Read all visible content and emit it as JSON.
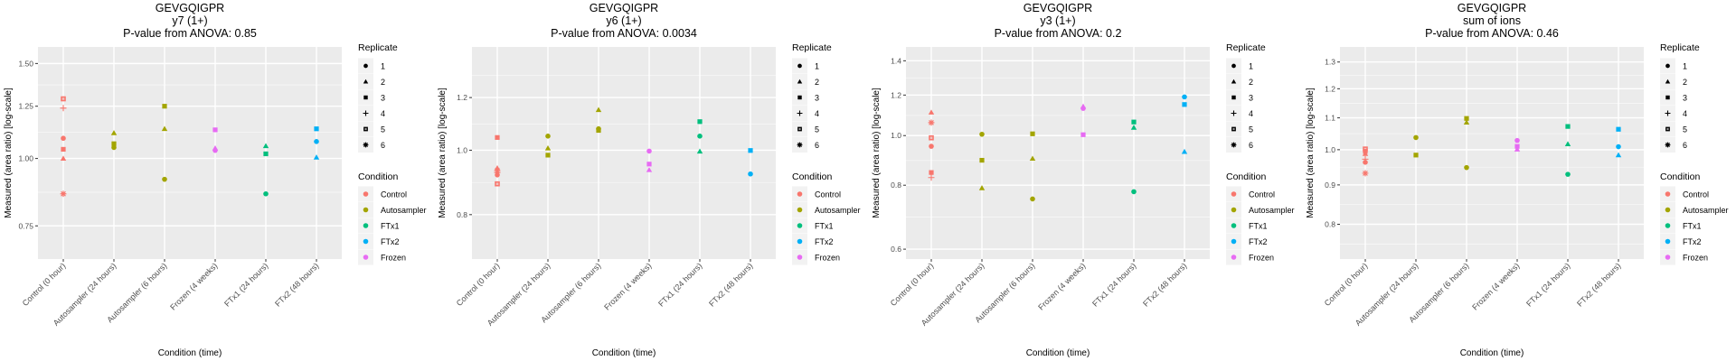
{
  "legend": {
    "replicate_title": "Replicate",
    "replicates": [
      {
        "label": "1",
        "shape": "circle"
      },
      {
        "label": "2",
        "shape": "triangle"
      },
      {
        "label": "3",
        "shape": "square"
      },
      {
        "label": "4",
        "shape": "plus"
      },
      {
        "label": "5",
        "shape": "square-x"
      },
      {
        "label": "6",
        "shape": "asterisk"
      }
    ],
    "condition_title": "Condition",
    "conditions": [
      {
        "label": "Control",
        "color": "#F8766D"
      },
      {
        "label": "Autosampler",
        "color": "#A3A500"
      },
      {
        "label": "FTx1",
        "color": "#00BF7D"
      },
      {
        "label": "FTx2",
        "color": "#00B0F6"
      },
      {
        "label": "Frozen",
        "color": "#E76BF3"
      }
    ]
  },
  "chart_data": [
    {
      "type": "scatter",
      "title": "GEVGQIGPR",
      "subtitle": "y7 (1+)",
      "annotation": "P-value from ANOVA: 0.85",
      "xlabel": "Condition (time)",
      "ylabel": "Measured (area ratio) [log-scale]",
      "yscale": "log",
      "ylim": [
        0.651,
        1.61
      ],
      "yticks": [
        0.75,
        1.0,
        1.25,
        1.5
      ],
      "ytick_labels": [
        "0.75",
        "1.00",
        "1.25",
        "1.50"
      ],
      "yminor": [
        0.866,
        1.118,
        1.369
      ],
      "grid": true,
      "legend": "right",
      "categories": [
        "Control (0 hour)",
        "Autosampler (24 hours)",
        "Autosampler (6 hours)",
        "Frozen (4 weeks)",
        "FTx1 (24 hours)",
        "FTx2 (48 hours)"
      ],
      "points": [
        {
          "x": 0,
          "y": 1.29,
          "rep": 5,
          "cond": "Control"
        },
        {
          "x": 0,
          "y": 1.24,
          "rep": 4,
          "cond": "Control"
        },
        {
          "x": 0,
          "y": 1.09,
          "rep": 1,
          "cond": "Control"
        },
        {
          "x": 0,
          "y": 1.04,
          "rep": 3,
          "cond": "Control"
        },
        {
          "x": 0,
          "y": 1.0,
          "rep": 2,
          "cond": "Control"
        },
        {
          "x": 0,
          "y": 0.86,
          "rep": 6,
          "cond": "Control"
        },
        {
          "x": 1,
          "y": 1.115,
          "rep": 2,
          "cond": "Autosampler"
        },
        {
          "x": 1,
          "y": 1.065,
          "rep": 3,
          "cond": "Autosampler"
        },
        {
          "x": 1,
          "y": 1.048,
          "rep": 1,
          "cond": "Autosampler"
        },
        {
          "x": 2,
          "y": 1.25,
          "rep": 3,
          "cond": "Autosampler"
        },
        {
          "x": 2,
          "y": 1.135,
          "rep": 2,
          "cond": "Autosampler"
        },
        {
          "x": 2,
          "y": 0.915,
          "rep": 1,
          "cond": "Autosampler"
        },
        {
          "x": 3,
          "y": 1.13,
          "rep": 3,
          "cond": "Frozen"
        },
        {
          "x": 3,
          "y": 1.045,
          "rep": 2,
          "cond": "Frozen"
        },
        {
          "x": 3,
          "y": 1.035,
          "rep": 1,
          "cond": "Frozen"
        },
        {
          "x": 4,
          "y": 1.055,
          "rep": 2,
          "cond": "FTx1"
        },
        {
          "x": 4,
          "y": 1.02,
          "rep": 3,
          "cond": "FTx1"
        },
        {
          "x": 4,
          "y": 0.86,
          "rep": 1,
          "cond": "FTx1"
        },
        {
          "x": 5,
          "y": 1.135,
          "rep": 3,
          "cond": "FTx2"
        },
        {
          "x": 5,
          "y": 1.075,
          "rep": 1,
          "cond": "FTx2"
        },
        {
          "x": 5,
          "y": 1.005,
          "rep": 2,
          "cond": "FTx2"
        }
      ]
    },
    {
      "type": "scatter",
      "title": "GEVGQIGPR",
      "subtitle": "y6 (1+)",
      "annotation": "P-value from ANOVA: 0.0034",
      "xlabel": "Condition (time)",
      "ylabel": "Measured (area ratio) [log-scale]",
      "yscale": "log",
      "ylim": [
        0.686,
        1.43
      ],
      "yticks": [
        0.8,
        1.0,
        1.2
      ],
      "ytick_labels": [
        "0.8",
        "1.0",
        "1.2"
      ],
      "yminor": [
        0.894,
        1.095,
        1.296
      ],
      "grid": true,
      "legend": "right",
      "categories": [
        "Control (0 hour)",
        "Autosampler (24 hours)",
        "Autosampler (6 hours)",
        "Frozen (4 weeks)",
        "FTx1 (24 hours)",
        "FTx2 (48 hours)"
      ],
      "points": [
        {
          "x": 0,
          "y": 1.045,
          "rep": 3,
          "cond": "Control"
        },
        {
          "x": 0,
          "y": 0.94,
          "rep": 2,
          "cond": "Control"
        },
        {
          "x": 0,
          "y": 0.932,
          "rep": 6,
          "cond": "Control"
        },
        {
          "x": 0,
          "y": 0.926,
          "rep": 4,
          "cond": "Control"
        },
        {
          "x": 0,
          "y": 0.918,
          "rep": 1,
          "cond": "Control"
        },
        {
          "x": 0,
          "y": 0.89,
          "rep": 5,
          "cond": "Control"
        },
        {
          "x": 1,
          "y": 1.05,
          "rep": 1,
          "cond": "Autosampler"
        },
        {
          "x": 1,
          "y": 1.007,
          "rep": 2,
          "cond": "Autosampler"
        },
        {
          "x": 1,
          "y": 0.983,
          "rep": 3,
          "cond": "Autosampler"
        },
        {
          "x": 2,
          "y": 1.15,
          "rep": 2,
          "cond": "Autosampler"
        },
        {
          "x": 2,
          "y": 1.077,
          "rep": 1,
          "cond": "Autosampler"
        },
        {
          "x": 2,
          "y": 1.071,
          "rep": 3,
          "cond": "Autosampler"
        },
        {
          "x": 3,
          "y": 0.997,
          "rep": 1,
          "cond": "Frozen"
        },
        {
          "x": 3,
          "y": 0.953,
          "rep": 3,
          "cond": "Frozen"
        },
        {
          "x": 3,
          "y": 0.934,
          "rep": 2,
          "cond": "Frozen"
        },
        {
          "x": 4,
          "y": 1.104,
          "rep": 3,
          "cond": "FTx1"
        },
        {
          "x": 4,
          "y": 1.05,
          "rep": 1,
          "cond": "FTx1"
        },
        {
          "x": 4,
          "y": 0.996,
          "rep": 2,
          "cond": "FTx1"
        },
        {
          "x": 5,
          "y": 0.999,
          "rep": 3,
          "cond": "FTx2"
        },
        {
          "x": 5,
          "y": 0.921,
          "rep": 1,
          "cond": "FTx2"
        }
      ]
    },
    {
      "type": "scatter",
      "title": "GEVGQIGPR",
      "subtitle": "y3 (1+)",
      "annotation": "P-value from ANOVA: 0.2",
      "xlabel": "Condition (time)",
      "ylabel": "Measured (area ratio) [log-scale]",
      "yscale": "log",
      "ylim": [
        0.574,
        1.49
      ],
      "yticks": [
        0.6,
        0.8,
        1.0,
        1.2,
        1.4
      ],
      "ytick_labels": [
        "0.6",
        "0.8",
        "1.0",
        "1.2",
        "1.4"
      ],
      "yminor": [
        0.693,
        0.894,
        1.095,
        1.296
      ],
      "grid": true,
      "legend": "right",
      "categories": [
        "Control (0 hour)",
        "Autosampler (24 hours)",
        "Autosampler (6 hours)",
        "Frozen (4 weeks)",
        "FTx1 (24 hours)",
        "FTx2 (48 hours)"
      ],
      "points": [
        {
          "x": 0,
          "y": 1.11,
          "rep": 2,
          "cond": "Control"
        },
        {
          "x": 0,
          "y": 1.06,
          "rep": 6,
          "cond": "Control"
        },
        {
          "x": 0,
          "y": 0.99,
          "rep": 5,
          "cond": "Control"
        },
        {
          "x": 0,
          "y": 0.953,
          "rep": 1,
          "cond": "Control"
        },
        {
          "x": 0,
          "y": 0.847,
          "rep": 3,
          "cond": "Control"
        },
        {
          "x": 0,
          "y": 0.828,
          "rep": 4,
          "cond": "Control"
        },
        {
          "x": 1,
          "y": 1.006,
          "rep": 1,
          "cond": "Autosampler"
        },
        {
          "x": 1,
          "y": 0.895,
          "rep": 3,
          "cond": "Autosampler"
        },
        {
          "x": 1,
          "y": 0.79,
          "rep": 2,
          "cond": "Autosampler"
        },
        {
          "x": 2,
          "y": 1.008,
          "rep": 3,
          "cond": "Autosampler"
        },
        {
          "x": 2,
          "y": 0.902,
          "rep": 2,
          "cond": "Autosampler"
        },
        {
          "x": 2,
          "y": 0.752,
          "rep": 1,
          "cond": "Autosampler"
        },
        {
          "x": 3,
          "y": 1.14,
          "rep": 2,
          "cond": "Frozen"
        },
        {
          "x": 3,
          "y": 1.13,
          "rep": 1,
          "cond": "Frozen"
        },
        {
          "x": 3,
          "y": 1.004,
          "rep": 3,
          "cond": "Frozen"
        },
        {
          "x": 4,
          "y": 1.063,
          "rep": 3,
          "cond": "FTx1"
        },
        {
          "x": 4,
          "y": 1.037,
          "rep": 2,
          "cond": "FTx1"
        },
        {
          "x": 4,
          "y": 0.777,
          "rep": 1,
          "cond": "FTx1"
        },
        {
          "x": 5,
          "y": 1.19,
          "rep": 1,
          "cond": "FTx2"
        },
        {
          "x": 5,
          "y": 1.15,
          "rep": 3,
          "cond": "FTx2"
        },
        {
          "x": 5,
          "y": 0.93,
          "rep": 2,
          "cond": "FTx2"
        }
      ]
    },
    {
      "type": "scatter",
      "title": "GEVGQIGPR",
      "subtitle": "sum of ions",
      "annotation": "P-value from ANOVA: 0.46",
      "xlabel": "Condition (time)",
      "ylabel": "Measured (area ratio) [log-scale]",
      "yscale": "log",
      "ylim": [
        0.721,
        1.36
      ],
      "yticks": [
        0.8,
        0.9,
        1.0,
        1.1,
        1.2,
        1.3
      ],
      "ytick_labels": [
        "0.8",
        "0.9",
        "1.0",
        "1.1",
        "1.2",
        "1.3"
      ],
      "yminor": [
        0.754,
        0.849,
        0.949,
        1.049,
        1.149,
        1.249
      ],
      "grid": true,
      "legend": "right",
      "categories": [
        "Control (0 hour)",
        "Autosampler (24 hours)",
        "Autosampler (6 hours)",
        "Frozen (4 weeks)",
        "FTx1 (24 hours)",
        "FTx2 (48 hours)"
      ],
      "points": [
        {
          "x": 0,
          "y": 1.002,
          "rep": 5,
          "cond": "Control"
        },
        {
          "x": 0,
          "y": 0.995,
          "rep": 3,
          "cond": "Control"
        },
        {
          "x": 0,
          "y": 0.988,
          "rep": 2,
          "cond": "Control"
        },
        {
          "x": 0,
          "y": 0.972,
          "rep": 4,
          "cond": "Control"
        },
        {
          "x": 0,
          "y": 0.963,
          "rep": 1,
          "cond": "Control"
        },
        {
          "x": 0,
          "y": 0.932,
          "rep": 6,
          "cond": "Control"
        },
        {
          "x": 1,
          "y": 1.037,
          "rep": 1,
          "cond": "Autosampler"
        },
        {
          "x": 1,
          "y": 0.984,
          "rep": 3,
          "cond": "Autosampler"
        },
        {
          "x": 2,
          "y": 1.098,
          "rep": 3,
          "cond": "Autosampler"
        },
        {
          "x": 2,
          "y": 1.085,
          "rep": 2,
          "cond": "Autosampler"
        },
        {
          "x": 2,
          "y": 0.948,
          "rep": 1,
          "cond": "Autosampler"
        },
        {
          "x": 3,
          "y": 1.028,
          "rep": 1,
          "cond": "Frozen"
        },
        {
          "x": 3,
          "y": 1.01,
          "rep": 3,
          "cond": "Frozen"
        },
        {
          "x": 3,
          "y": 1.001,
          "rep": 2,
          "cond": "Frozen"
        },
        {
          "x": 4,
          "y": 1.072,
          "rep": 3,
          "cond": "FTx1"
        },
        {
          "x": 4,
          "y": 1.017,
          "rep": 2,
          "cond": "FTx1"
        },
        {
          "x": 4,
          "y": 0.929,
          "rep": 1,
          "cond": "FTx1"
        },
        {
          "x": 5,
          "y": 1.063,
          "rep": 3,
          "cond": "FTx2"
        },
        {
          "x": 5,
          "y": 1.009,
          "rep": 1,
          "cond": "FTx2"
        },
        {
          "x": 5,
          "y": 0.984,
          "rep": 2,
          "cond": "FTx2"
        }
      ]
    }
  ]
}
